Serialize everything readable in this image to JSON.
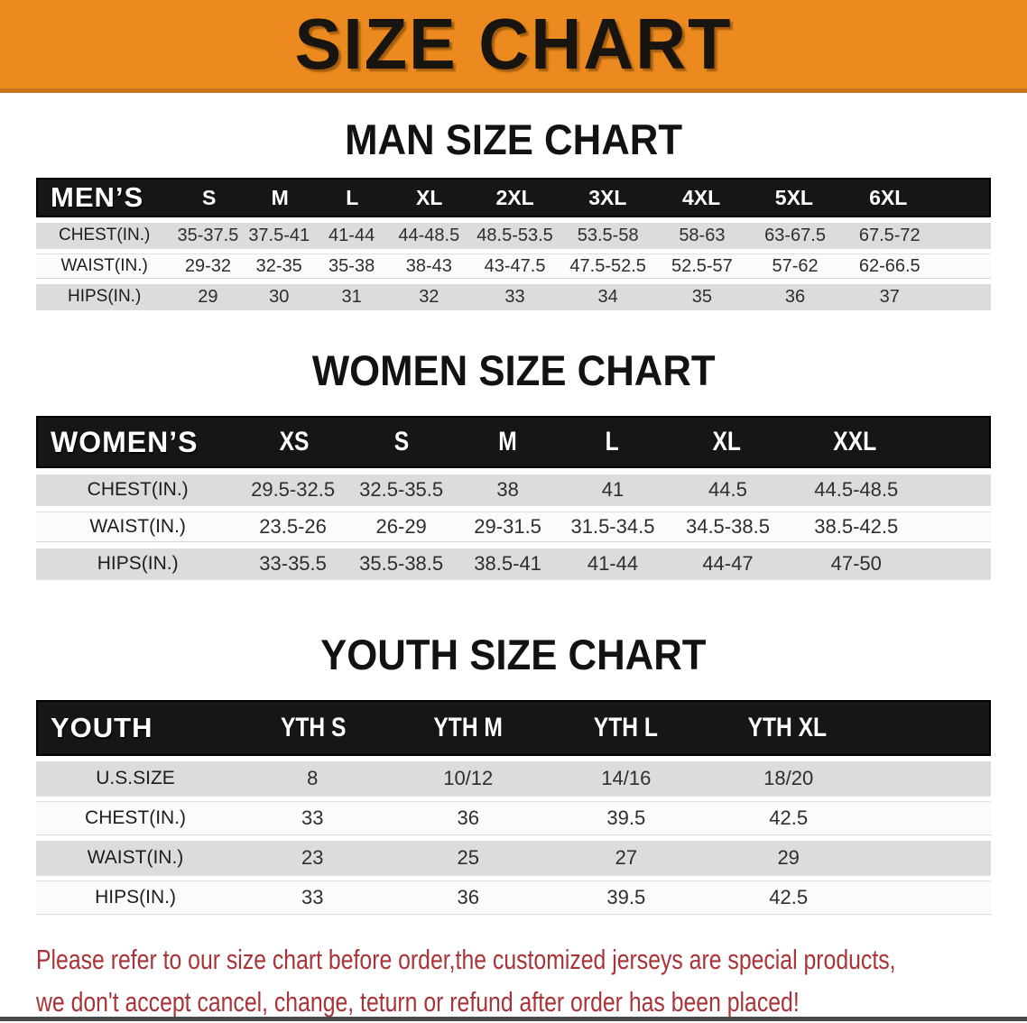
{
  "banner": {
    "title": "SIZE CHART",
    "bg_color": "#EC8A1F",
    "border_color": "#C9731B"
  },
  "colors": {
    "header_band": "#161616",
    "shaded_row": "#DCDCDC",
    "footer_text": "#A93438"
  },
  "sections": [
    {
      "heading": "MAN SIZE CHART",
      "table": {
        "header_label": "MEN’S",
        "columns": [
          "S",
          "M",
          "L",
          "XL",
          "2XL",
          "3XL",
          "4XL",
          "5XL",
          "6XL"
        ],
        "rows": [
          {
            "label": "CHEST(IN.)",
            "values": [
              "35-37.5",
              "37.5-41",
              "41-44",
              "44-48.5",
              "48.5-53.5",
              "53.5-58",
              "58-63",
              "63-67.5",
              "67.5-72"
            ]
          },
          {
            "label": "WAIST(IN.)",
            "values": [
              "29-32",
              "32-35",
              "35-38",
              "38-43",
              "43-47.5",
              "47.5-52.5",
              "52.5-57",
              "57-62",
              "62-66.5"
            ]
          },
          {
            "label": "HIPS(IN.)",
            "values": [
              "29",
              "30",
              "31",
              "32",
              "33",
              "34",
              "35",
              "36",
              "37"
            ]
          }
        ]
      }
    },
    {
      "heading": "WOMEN SIZE CHART",
      "table": {
        "header_label": "WOMEN’S",
        "columns": [
          "XS",
          "S",
          "M",
          "L",
          "XL",
          "XXL"
        ],
        "rows": [
          {
            "label": "CHEST(IN.)",
            "values": [
              "29.5-32.5",
              "32.5-35.5",
              "38",
              "41",
              "44.5",
              "44.5-48.5"
            ]
          },
          {
            "label": "WAIST(IN.)",
            "values": [
              "23.5-26",
              "26-29",
              "29-31.5",
              "31.5-34.5",
              "34.5-38.5",
              "38.5-42.5"
            ]
          },
          {
            "label": "HIPS(IN.)",
            "values": [
              "33-35.5",
              "35.5-38.5",
              "38.5-41",
              "41-44",
              "44-47",
              "47-50"
            ]
          }
        ]
      }
    },
    {
      "heading": "YOUTH SIZE CHART",
      "table": {
        "header_label": "YOUTH",
        "columns": [
          "YTH S",
          "YTH M",
          "YTH L",
          "YTH XL"
        ],
        "rows": [
          {
            "label": "U.S.SIZE",
            "values": [
              "8",
              "10/12",
              "14/16",
              "18/20"
            ]
          },
          {
            "label": "CHEST(IN.)",
            "values": [
              "33",
              "36",
              "39.5",
              "42.5"
            ]
          },
          {
            "label": "WAIST(IN.)",
            "values": [
              "23",
              "25",
              "27",
              "29"
            ]
          },
          {
            "label": "HIPS(IN.)",
            "values": [
              "33",
              "36",
              "39.5",
              "42.5"
            ]
          }
        ]
      }
    }
  ],
  "footer": {
    "line1": "Please refer to our size chart before order,the customized jerseys are special products,",
    "line2": "we don't accept cancel, change, teturn or refund after order has been placed!"
  }
}
